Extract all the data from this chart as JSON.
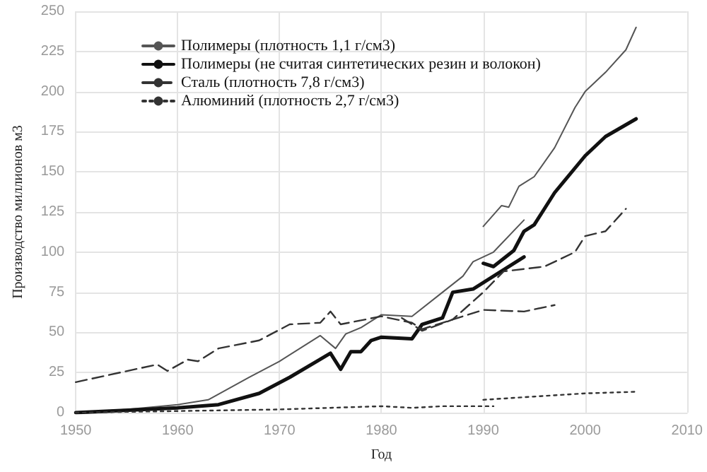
{
  "chart_data": {
    "type": "line",
    "xlabel": "Год",
    "ylabel": "Производство миллионов м3",
    "xlim": [
      1950,
      2010
    ],
    "xticks": [
      1950,
      1960,
      1970,
      1980,
      1990,
      2000,
      2010
    ],
    "ylim": [
      0,
      250
    ],
    "yticks": [
      0,
      25,
      50,
      75,
      100,
      125,
      150,
      175,
      200,
      225,
      250
    ],
    "grid": true,
    "legend": "top left",
    "marker": "none",
    "series": [
      {
        "name": "Полимеры (плотность 1,1 г/см3)",
        "color": "#555555",
        "line_style": "solid",
        "x": [
          1950,
          1955,
          1960,
          1963,
          1967,
          1970,
          1974,
          1975.5,
          1976.5,
          1978,
          1980,
          1983,
          1986,
          1988,
          1989,
          1991,
          1994
        ],
        "values": [
          0,
          2,
          5,
          8,
          22,
          32,
          48,
          40,
          49,
          53,
          61,
          60,
          75,
          85,
          94,
          100,
          120
        ]
      },
      {
        "name": "Полимеры (не считая синтетических резин и волокон)",
        "color": "#111111",
        "line_style": "solid",
        "x": [
          1950,
          1960,
          1964,
          1968,
          1971,
          1975,
          1976,
          1977,
          1978,
          1979,
          1980,
          1983,
          1984,
          1986,
          1987,
          1989,
          1991,
          1994
        ],
        "values": [
          0,
          3,
          5,
          12,
          22,
          37,
          27,
          38,
          38,
          45,
          47,
          46,
          55,
          59,
          75,
          77,
          85,
          97
        ]
      },
      {
        "name": "Сталь (плотность 7,8 г/см3)",
        "color": "#333333",
        "line_style": "dashed",
        "x": [
          1950,
          1958,
          1959,
          1961,
          1962,
          1964,
          1968,
          1971,
          1974,
          1975,
          1976,
          1980,
          1983,
          1984,
          1990,
          1994,
          1997
        ],
        "values": [
          19,
          30,
          26,
          33,
          32,
          40,
          45,
          55,
          56,
          63,
          55,
          60,
          56,
          52,
          64,
          63,
          67
        ]
      },
      {
        "name": "Алюминий (плотность 2,7 г/см3)",
        "color": "#333333",
        "line_style": "dotted",
        "x": [
          1950,
          1960,
          1970,
          1980,
          1983,
          1986,
          1991
        ],
        "values": [
          0,
          1,
          2,
          4,
          3,
          4,
          4
        ]
      },
      {
        "color": "#555555",
        "line_style": "solid",
        "x": [
          1990,
          1991.8,
          1992.5,
          1993.5,
          1995,
          1997,
          1999,
          2000,
          2002,
          2004,
          2005
        ],
        "values": [
          116,
          129,
          128,
          141,
          147,
          165,
          190,
          200,
          212,
          226,
          240
        ]
      },
      {
        "color": "#111111",
        "line_style": "solid",
        "x": [
          1990,
          1991,
          1993,
          1994,
          1995,
          1997,
          2000,
          2002,
          2005
        ],
        "values": [
          93,
          91,
          101,
          113,
          117,
          137,
          160,
          172,
          183
        ]
      },
      {
        "color": "#333333",
        "line_style": "dashed",
        "x": [
          1982,
          1984,
          1987,
          1990,
          1992,
          1996,
          1999,
          2000,
          2002,
          2004
        ],
        "values": [
          59,
          51,
          58,
          75,
          88,
          91,
          100,
          110,
          113,
          127
        ]
      },
      {
        "color": "#333333",
        "line_style": "dotted",
        "x": [
          1990,
          1995,
          2000,
          2005
        ],
        "values": [
          8,
          10,
          12,
          13
        ]
      }
    ]
  }
}
